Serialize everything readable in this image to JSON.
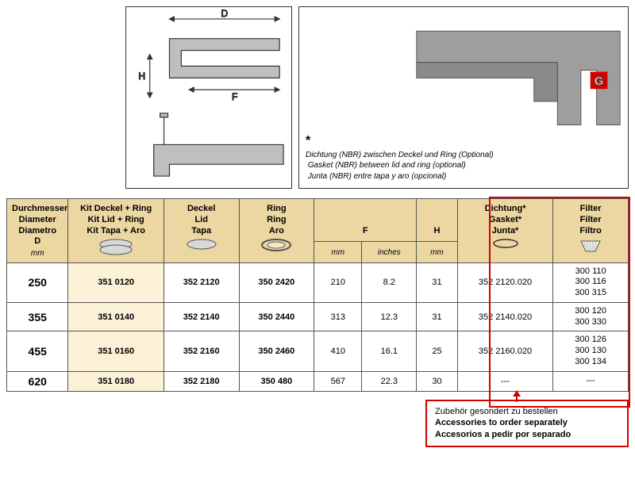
{
  "drawings": {
    "left": {
      "labels": [
        "D",
        "F",
        "H"
      ]
    },
    "right": {
      "gasket_label": "G",
      "gasket_color": "#d30000",
      "note_star": "*",
      "note_de": "Dichtung (NBR) zwischen Deckel und Ring (Optional)",
      "note_en": "Gasket (NBR) between lid and ring (optional)",
      "note_es": "Junta (NBR) entre tapa y aro (opcional)"
    }
  },
  "table": {
    "headers": {
      "diameter": {
        "de": "Durchmesser",
        "en": "Diameter",
        "es": "Diametro",
        "sym": "D",
        "unit": "mm"
      },
      "kit": {
        "de": "Kit Deckel + Ring",
        "en": "Kit Lid + Ring",
        "es": "Kit Tapa + Aro"
      },
      "lid": {
        "de": "Deckel",
        "en": "Lid",
        "es": "Tapa"
      },
      "ring": {
        "de": "Ring",
        "en": "Ring",
        "es": "Aro"
      },
      "f": {
        "sym": "F",
        "unit_mm": "mm",
        "unit_in": "inches"
      },
      "h": {
        "sym": "H",
        "unit": "mm"
      },
      "gasket": {
        "de": "Dichtung*",
        "en": "Gasket*",
        "es": "Junta*"
      },
      "filter": {
        "de": "Filter",
        "en": "Filter",
        "es": "Filtro"
      }
    },
    "rows": [
      {
        "d": "250",
        "kit": "351 0120",
        "lid": "352 2120",
        "ring": "350 2420",
        "f_mm": "210",
        "f_in": "8.2",
        "h": "31",
        "gasket": "352 2120.020",
        "filter": "300 110\n300 116\n300 315"
      },
      {
        "d": "355",
        "kit": "351 0140",
        "lid": "352 2140",
        "ring": "350 2440",
        "f_mm": "313",
        "f_in": "12.3",
        "h": "31",
        "gasket": "352 2140.020",
        "filter": "300 120\n300 330"
      },
      {
        "d": "455",
        "kit": "351 0160",
        "lid": "352 2160",
        "ring": "350 2460",
        "f_mm": "410",
        "f_in": "16.1",
        "h": "25",
        "gasket": "352 2160.020",
        "filter": "300 126\n300 130\n300 134"
      },
      {
        "d": "620",
        "kit": "351 0180",
        "lid": "352 2180",
        "ring": "350 480",
        "f_mm": "567",
        "f_in": "22.3",
        "h": "30",
        "gasket": "---",
        "filter": "---"
      }
    ],
    "col_widths_pct": [
      9,
      14,
      11,
      11,
      7,
      8,
      6,
      14,
      11
    ],
    "header_bg": "#ecd7a3",
    "highlight_bg": "#faf1d6",
    "accessory_outline": "#d30000"
  },
  "order_note": {
    "de": "Zubehör gesondert zu bestellen",
    "en": "Accessories to order separately",
    "es": "Accesorios a pedir por separado"
  }
}
